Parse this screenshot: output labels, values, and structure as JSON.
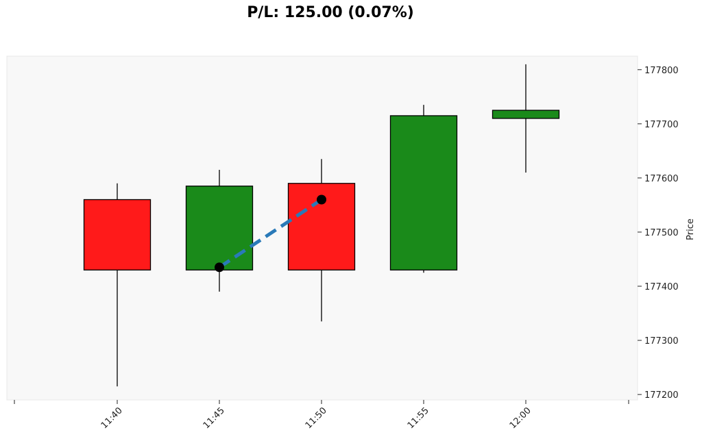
{
  "chart_data": {
    "type": "candlestick",
    "title": "P/L: 125.00 (0.07%)",
    "xlabel": "",
    "ylabel": "Price",
    "y_axis_side": "right",
    "ylim": [
      177190,
      177825
    ],
    "y_ticks": [
      177200,
      177300,
      177400,
      177500,
      177600,
      177700,
      177800
    ],
    "categories": [
      "11:40",
      "11:45",
      "11:50",
      "11:55",
      "12:00"
    ],
    "candles": [
      {
        "time": "11:40",
        "open": 177560,
        "high": 177590,
        "low": 177215,
        "close": 177430
      },
      {
        "time": "11:45",
        "open": 177430,
        "high": 177615,
        "low": 177390,
        "close": 177585
      },
      {
        "time": "11:50",
        "open": 177590,
        "high": 177635,
        "low": 177335,
        "close": 177430
      },
      {
        "time": "11:55",
        "open": 177430,
        "high": 177735,
        "low": 177425,
        "close": 177715
      },
      {
        "time": "12:00",
        "open": 177710,
        "high": 177810,
        "low": 177610,
        "close": 177725
      }
    ],
    "trade": {
      "entry": {
        "time": "11:45",
        "price": 177435
      },
      "exit": {
        "time": "11:50",
        "price": 177560
      }
    },
    "colors": {
      "up": "#1a8a1a",
      "down": "#ff1a1a",
      "trade_line": "#2a7ab8",
      "trade_marker": "#000000",
      "plot_background": "#f8f8f8"
    },
    "grid": false
  }
}
